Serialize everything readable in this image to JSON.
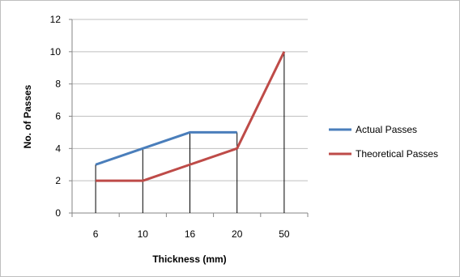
{
  "chart_data": {
    "type": "line",
    "categories": [
      "6",
      "10",
      "16",
      "20",
      "50"
    ],
    "series": [
      {
        "name": "Actual Passes",
        "values": [
          3,
          4,
          5,
          5,
          null
        ],
        "color": "#4a7ebb"
      },
      {
        "name": "Theoretical Passes",
        "values": [
          2,
          2,
          3,
          4,
          10
        ],
        "color": "#be4b48"
      }
    ],
    "drop_lines": [
      {
        "category": "6",
        "value": 3
      },
      {
        "category": "10",
        "value": 4
      },
      {
        "category": "16",
        "value": 5
      },
      {
        "category": "20",
        "value": 5
      },
      {
        "category": "50",
        "value": 10
      }
    ],
    "title": "",
    "xlabel": "Thickness (mm)",
    "ylabel": "No. of Passes",
    "ylim": [
      0,
      12
    ],
    "yticks": [
      "0",
      "2",
      "4",
      "6",
      "8",
      "10",
      "12"
    ],
    "grid": true,
    "legend_position": "right"
  }
}
